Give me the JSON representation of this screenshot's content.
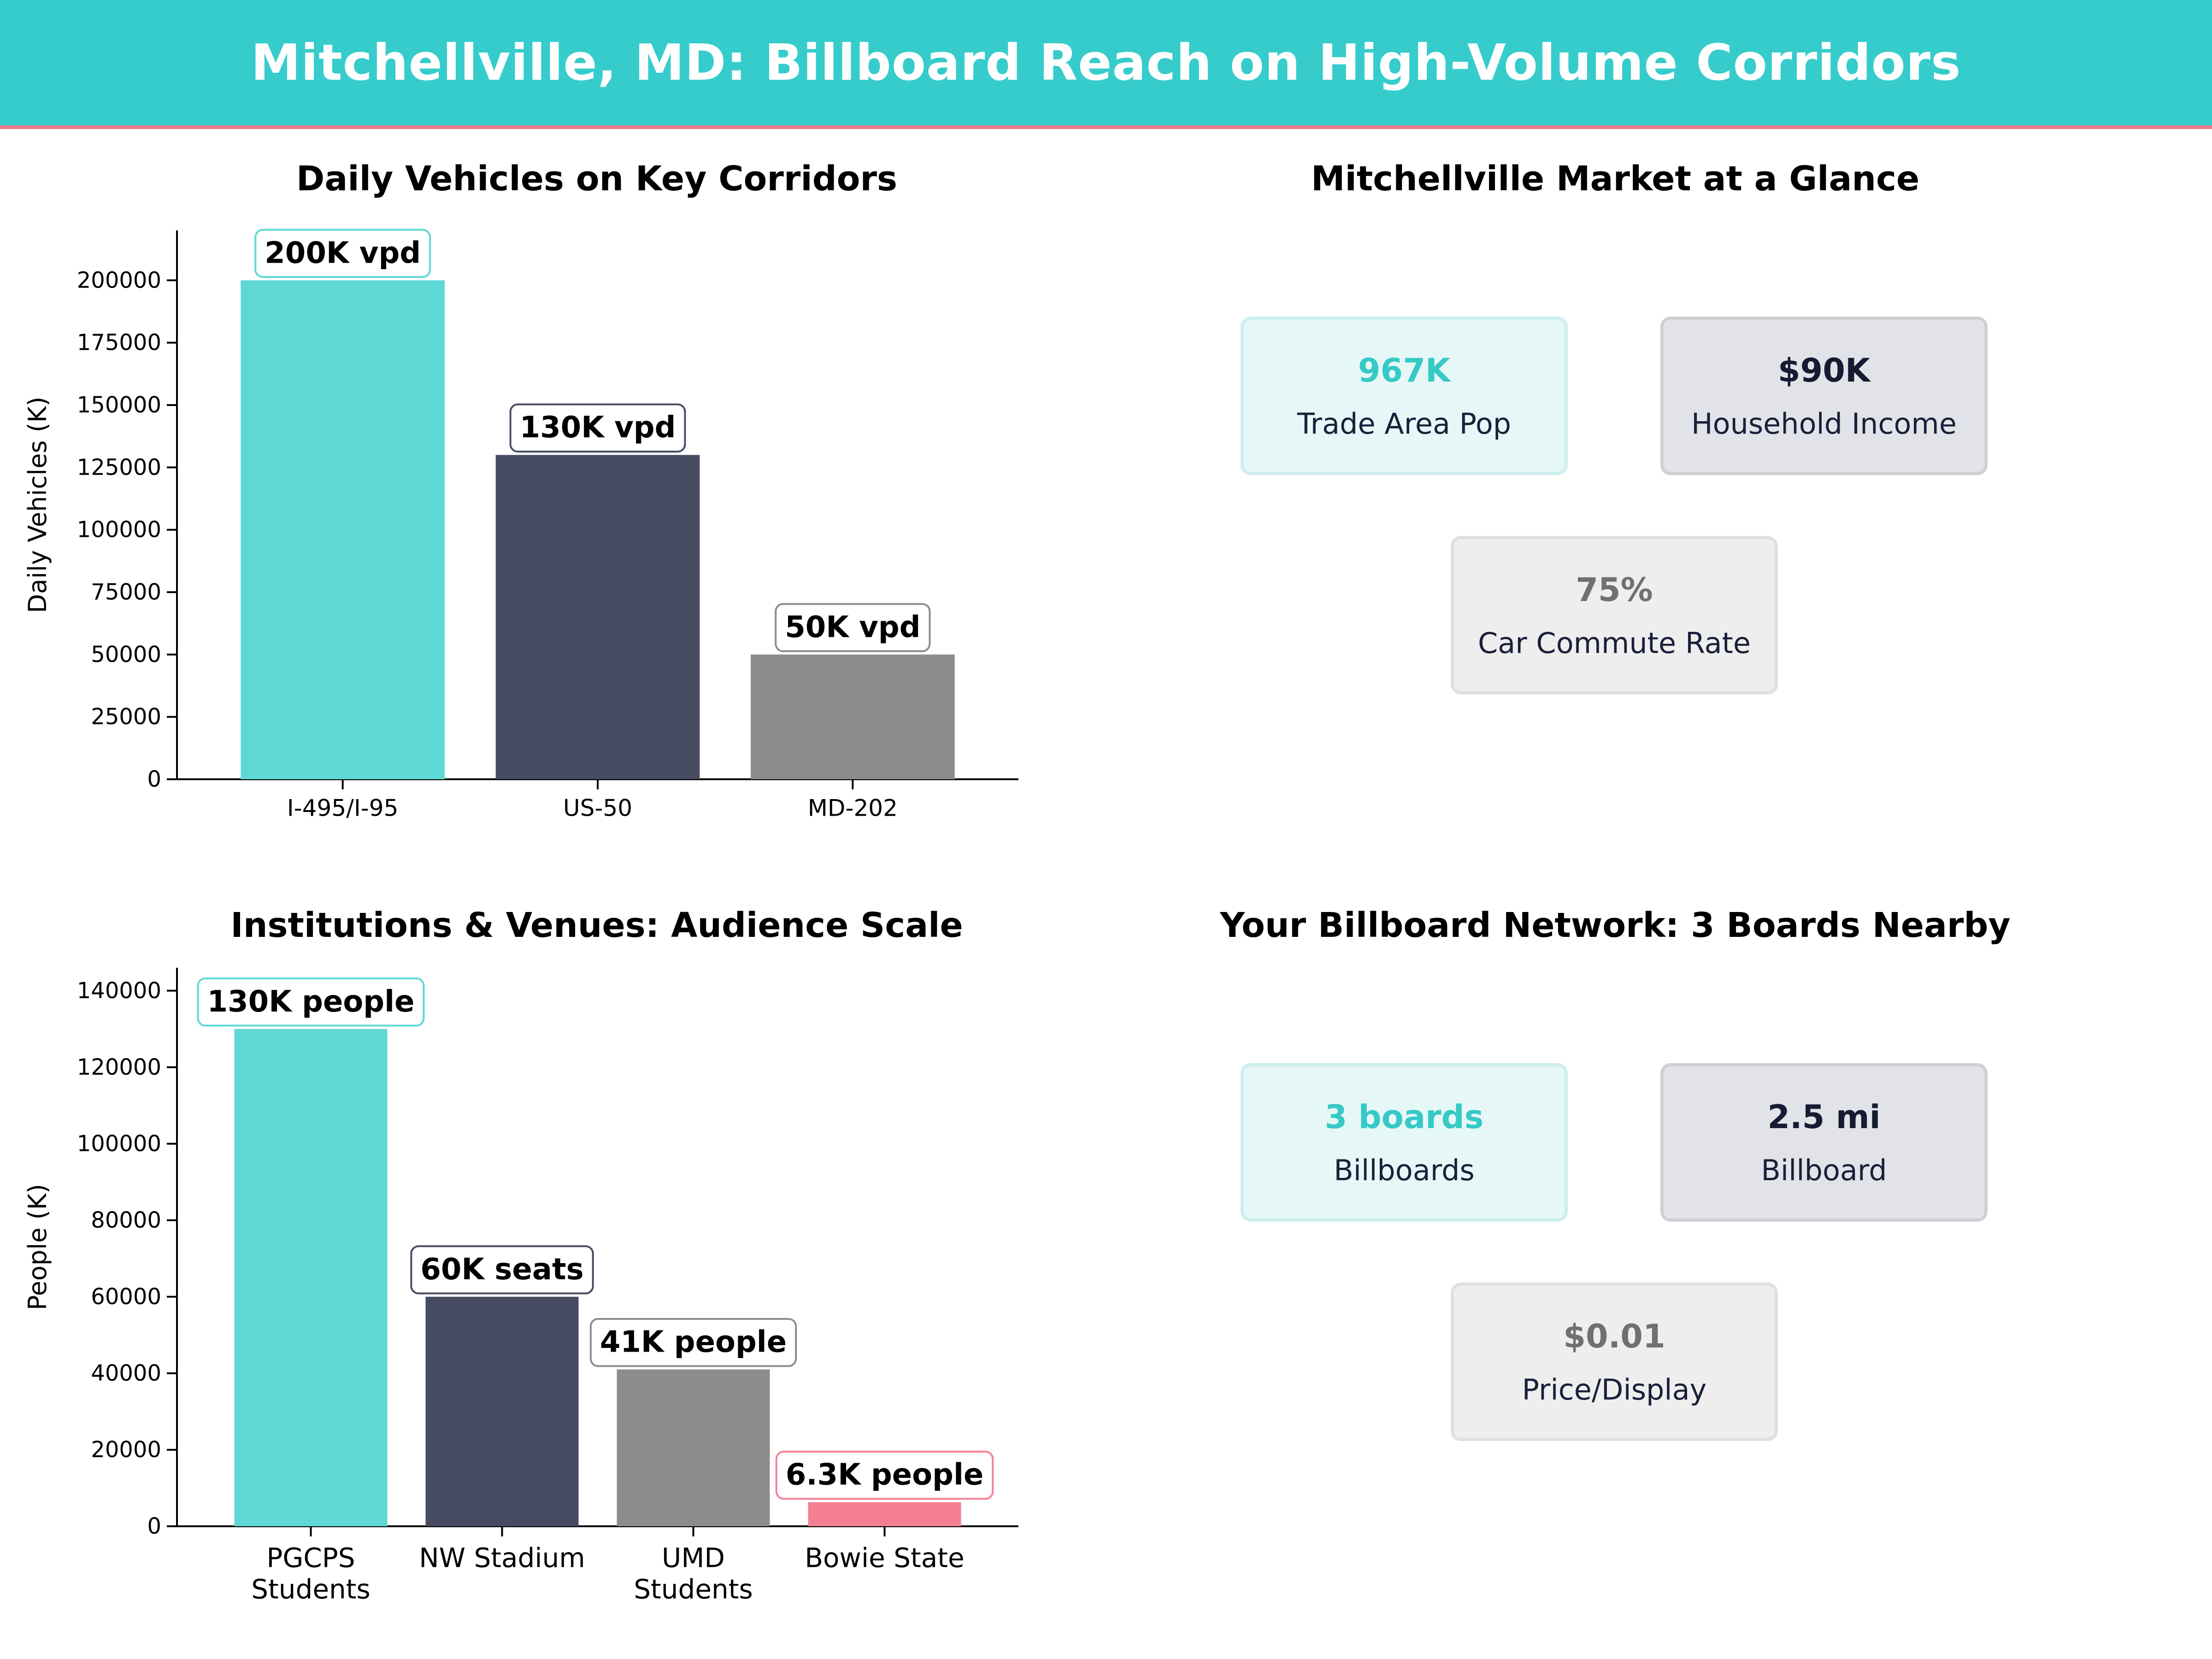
{
  "banner": {
    "title": "Mitchellville, MD: Billboard Reach on High-Volume Corridors"
  },
  "colors": {
    "teal": "#5ed8d4",
    "navy": "#464b62",
    "grey": "#8c8c8c",
    "pink": "#f57f92"
  },
  "chart_data": [
    {
      "type": "bar",
      "title": "Daily Vehicles on Key Corridors",
      "ylabel": "Daily Vehicles (K)",
      "xlabel": "",
      "categories": [
        "I-495/I-95",
        "US-50",
        "MD-202"
      ],
      "values": [
        200000,
        130000,
        50000
      ],
      "data_labels": [
        "200K vpd",
        "130K vpd",
        "50K vpd"
      ],
      "bar_colors": [
        "#5ed8d4",
        "#464b62",
        "#8c8c8c"
      ],
      "label_border_colors": [
        "#5ed8d4",
        "#464b62",
        "#8c8c8c"
      ],
      "ylim": [
        0,
        220000
      ],
      "yticks": [
        0,
        25000,
        50000,
        75000,
        100000,
        125000,
        150000,
        175000,
        200000
      ],
      "grid": false
    },
    {
      "type": "bar",
      "title": "Institutions & Venues: Audience Scale",
      "ylabel": "People (K)",
      "xlabel": "",
      "categories": [
        "PGCPS Students",
        "NW Stadium",
        "UMD Students",
        "Bowie State"
      ],
      "values": [
        130000,
        60000,
        41000,
        6300
      ],
      "data_labels": [
        "130K people",
        "60K seats",
        "41K people",
        "6.3K people"
      ],
      "bar_colors": [
        "#5ed8d4",
        "#464b62",
        "#8c8c8c",
        "#f57f92"
      ],
      "label_border_colors": [
        "#5ed8d4",
        "#464b62",
        "#8c8c8c",
        "#f57f92"
      ],
      "ylim": [
        0,
        146000
      ],
      "yticks": [
        0,
        20000,
        40000,
        60000,
        80000,
        100000,
        120000,
        140000
      ],
      "grid": false
    }
  ],
  "market": {
    "title": "Mitchellville Market at a Glance",
    "cards": [
      {
        "value": "967K",
        "label": "Trade Area Pop",
        "style": "teal"
      },
      {
        "value": "$90K",
        "label": "Household Income",
        "style": "navy"
      },
      {
        "value": "75%",
        "label": "Car Commute Rate",
        "style": "grey"
      }
    ]
  },
  "network": {
    "title": "Your Billboard Network: 3 Boards Nearby",
    "cards": [
      {
        "value": "3 boards",
        "label": "Billboards",
        "style": "teal"
      },
      {
        "value": "2.5 mi",
        "label": "Billboard",
        "style": "navy"
      },
      {
        "value": "$0.01",
        "label": "Price/Display",
        "style": "grey"
      }
    ]
  }
}
